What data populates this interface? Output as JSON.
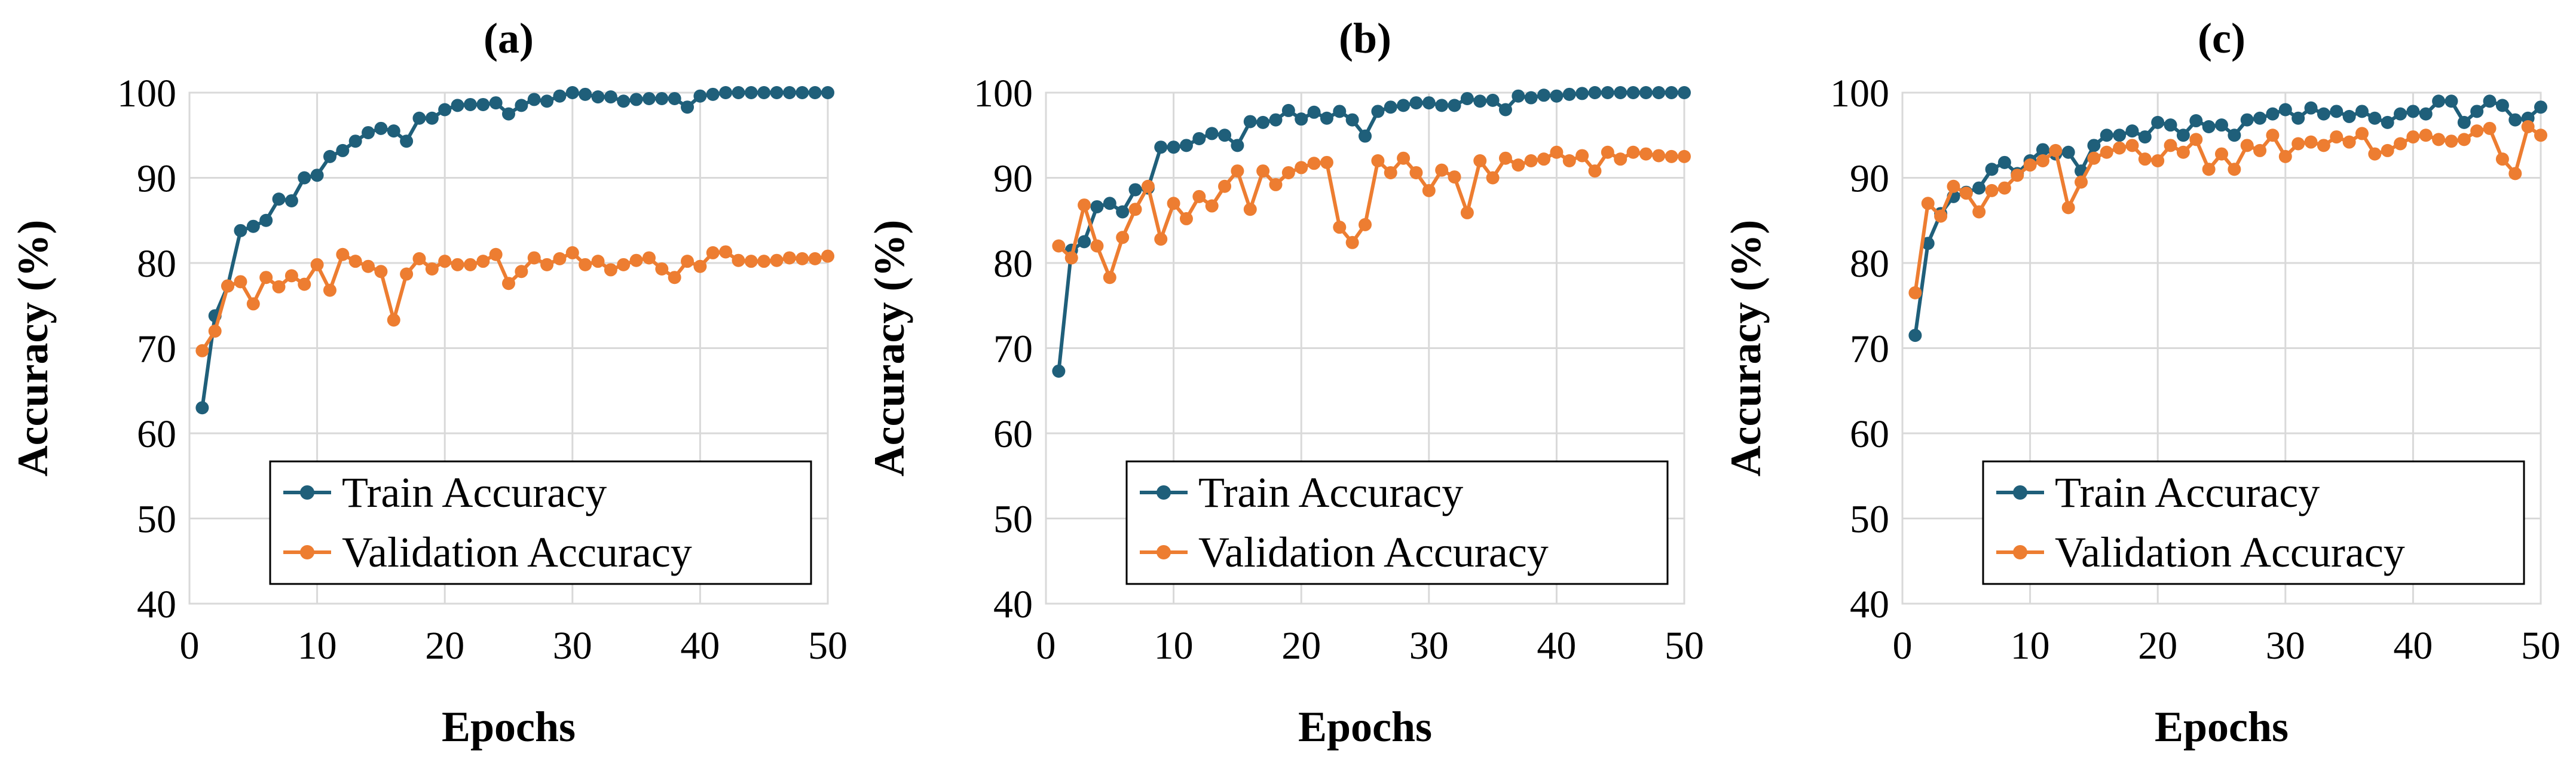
{
  "chart_data": [
    {
      "type": "line",
      "title": "(a)",
      "xlabel": "Epochs",
      "ylabel": "Accuracy (%)",
      "xlim": [
        0,
        50
      ],
      "ylim": [
        40,
        100
      ],
      "xticks": [
        "0",
        "10",
        "20",
        "30",
        "40",
        "50"
      ],
      "yticks": [
        "40",
        "50",
        "60",
        "70",
        "80",
        "90",
        "100"
      ],
      "grid": true,
      "legend_position": "bottom-right",
      "x": [
        1,
        2,
        3,
        4,
        5,
        6,
        7,
        8,
        9,
        10,
        11,
        12,
        13,
        14,
        15,
        16,
        17,
        18,
        19,
        20,
        21,
        22,
        23,
        24,
        25,
        26,
        27,
        28,
        29,
        30,
        31,
        32,
        33,
        34,
        35,
        36,
        37,
        38,
        39,
        40,
        41,
        42,
        43,
        44,
        45,
        46,
        47,
        48,
        49,
        50
      ],
      "series": [
        {
          "name": "Train Accuracy",
          "color": "#1f5f7a",
          "values": [
            63.0,
            73.8,
            77.3,
            83.8,
            84.3,
            85.0,
            87.5,
            87.3,
            90.0,
            90.3,
            92.5,
            93.2,
            94.3,
            95.3,
            95.8,
            95.5,
            94.3,
            97.0,
            97.0,
            98.0,
            98.5,
            98.6,
            98.6,
            98.8,
            97.5,
            98.5,
            99.2,
            99.0,
            99.6,
            100.0,
            99.8,
            99.5,
            99.5,
            99.0,
            99.2,
            99.3,
            99.3,
            99.3,
            98.3,
            99.6,
            99.8,
            100.0,
            100.0,
            100.0,
            100.0,
            100.0,
            100.0,
            100.0,
            100.0,
            100.0
          ]
        },
        {
          "name": "Validation Accuracy",
          "color": "#ed7d31",
          "values": [
            69.7,
            72.0,
            77.3,
            77.8,
            75.2,
            78.3,
            77.2,
            78.5,
            77.5,
            79.8,
            76.8,
            81.0,
            80.2,
            79.6,
            79.0,
            73.3,
            78.7,
            80.5,
            79.3,
            80.2,
            79.8,
            79.8,
            80.2,
            81.0,
            77.6,
            79.0,
            80.6,
            79.8,
            80.5,
            81.2,
            79.8,
            80.2,
            79.2,
            79.8,
            80.3,
            80.6,
            79.3,
            78.3,
            80.2,
            79.6,
            81.2,
            81.3,
            80.3,
            80.2,
            80.2,
            80.3,
            80.6,
            80.5,
            80.5,
            80.8
          ]
        }
      ]
    },
    {
      "type": "line",
      "title": "(b)",
      "xlabel": "Epochs",
      "ylabel": "Accuracy (%)",
      "xlim": [
        0,
        50
      ],
      "ylim": [
        40,
        100
      ],
      "xticks": [
        "0",
        "10",
        "20",
        "30",
        "40",
        "50"
      ],
      "yticks": [
        "40",
        "50",
        "60",
        "70",
        "80",
        "90",
        "100"
      ],
      "grid": true,
      "legend_position": "bottom-right",
      "x": [
        1,
        2,
        3,
        4,
        5,
        6,
        7,
        8,
        9,
        10,
        11,
        12,
        13,
        14,
        15,
        16,
        17,
        18,
        19,
        20,
        21,
        22,
        23,
        24,
        25,
        26,
        27,
        28,
        29,
        30,
        31,
        32,
        33,
        34,
        35,
        36,
        37,
        38,
        39,
        40,
        41,
        42,
        43,
        44,
        45,
        46,
        47,
        48,
        49,
        50
      ],
      "series": [
        {
          "name": "Train Accuracy",
          "color": "#1f5f7a",
          "values": [
            67.3,
            81.5,
            82.5,
            86.6,
            87.0,
            86.0,
            88.6,
            88.8,
            93.6,
            93.6,
            93.8,
            94.6,
            95.2,
            95.0,
            93.8,
            96.6,
            96.5,
            96.8,
            97.9,
            96.9,
            97.7,
            97.0,
            97.8,
            96.8,
            94.9,
            97.8,
            98.3,
            98.5,
            98.8,
            98.8,
            98.5,
            98.5,
            99.3,
            99.0,
            99.1,
            98.0,
            99.6,
            99.4,
            99.7,
            99.6,
            99.8,
            99.9,
            100.0,
            100.0,
            100.0,
            100.0,
            100.0,
            100.0,
            100.0,
            100.0
          ]
        },
        {
          "name": "Validation Accuracy",
          "color": "#ed7d31",
          "values": [
            82.0,
            80.6,
            86.8,
            82.0,
            78.3,
            83.0,
            86.3,
            89.0,
            82.8,
            87.0,
            85.2,
            87.8,
            86.7,
            89.0,
            90.8,
            86.3,
            90.8,
            89.2,
            90.6,
            91.2,
            91.7,
            91.8,
            84.2,
            82.4,
            84.5,
            92.0,
            90.6,
            92.3,
            90.6,
            88.5,
            90.9,
            90.1,
            85.9,
            92.0,
            90.0,
            92.3,
            91.5,
            92.0,
            92.2,
            93.0,
            92.0,
            92.6,
            90.8,
            93.0,
            92.2,
            93.0,
            92.8,
            92.6,
            92.5,
            92.5
          ]
        }
      ]
    },
    {
      "type": "line",
      "title": "(c)",
      "xlabel": "Epochs",
      "ylabel": "Accuracy (%)",
      "xlim": [
        0,
        50
      ],
      "ylim": [
        40,
        100
      ],
      "xticks": [
        "0",
        "10",
        "20",
        "30",
        "40",
        "50"
      ],
      "yticks": [
        "40",
        "50",
        "60",
        "70",
        "80",
        "90",
        "100"
      ],
      "grid": true,
      "legend_position": "bottom-right",
      "x": [
        1,
        2,
        3,
        4,
        5,
        6,
        7,
        8,
        9,
        10,
        11,
        12,
        13,
        14,
        15,
        16,
        17,
        18,
        19,
        20,
        21,
        22,
        23,
        24,
        25,
        26,
        27,
        28,
        29,
        30,
        31,
        32,
        33,
        34,
        35,
        36,
        37,
        38,
        39,
        40,
        41,
        42,
        43,
        44,
        45,
        46,
        47,
        48,
        49,
        50
      ],
      "series": [
        {
          "name": "Train Accuracy",
          "color": "#1f5f7a",
          "values": [
            71.5,
            82.3,
            85.8,
            87.8,
            88.3,
            88.8,
            91.0,
            91.8,
            90.5,
            92.0,
            93.3,
            92.8,
            93.0,
            90.8,
            93.8,
            95.0,
            95.0,
            95.5,
            94.8,
            96.5,
            96.2,
            95.0,
            96.7,
            96.0,
            96.2,
            95.0,
            96.8,
            97.0,
            97.5,
            98.0,
            97.0,
            98.2,
            97.5,
            97.8,
            97.2,
            97.8,
            97.0,
            96.5,
            97.5,
            97.8,
            97.5,
            99.0,
            99.0,
            96.5,
            97.8,
            99.0,
            98.5,
            96.8,
            97.0,
            98.3
          ]
        },
        {
          "name": "Validation Accuracy",
          "color": "#ed7d31",
          "values": [
            76.5,
            87.0,
            85.5,
            89.0,
            88.2,
            86.0,
            88.5,
            88.8,
            90.3,
            91.5,
            92.0,
            93.2,
            86.5,
            89.5,
            92.3,
            93.0,
            93.5,
            93.8,
            92.2,
            92.0,
            93.8,
            93.0,
            94.5,
            91.0,
            92.8,
            91.0,
            93.8,
            93.2,
            95.0,
            92.5,
            94.0,
            94.2,
            93.8,
            94.8,
            94.2,
            95.2,
            92.8,
            93.2,
            94.0,
            94.8,
            95.0,
            94.5,
            94.3,
            94.5,
            95.5,
            95.8,
            92.2,
            90.5,
            96.0,
            95.0
          ]
        }
      ]
    }
  ]
}
